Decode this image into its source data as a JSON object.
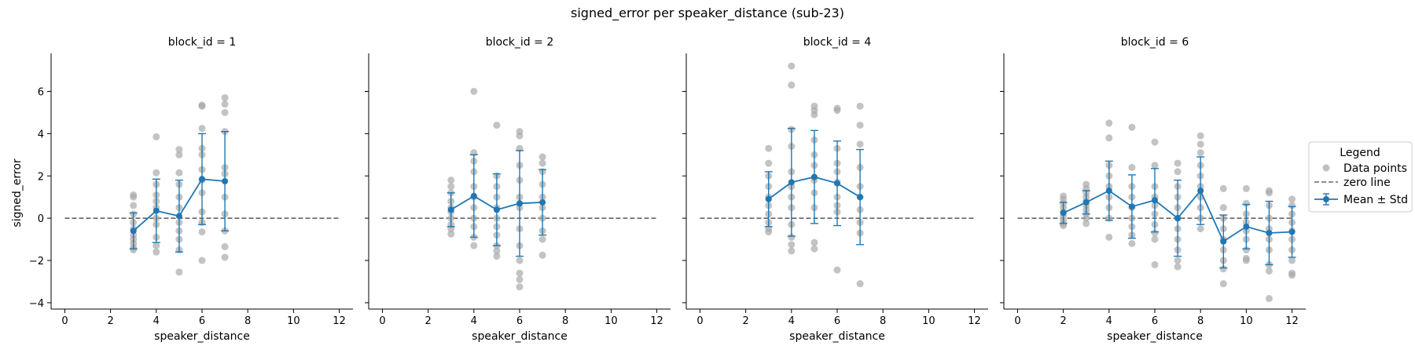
{
  "figure": {
    "suptitle": "signed_error per speaker_distance (sub-23)",
    "ylabel": "signed_error",
    "xlabel": "speaker_distance"
  },
  "legend": {
    "title": "Legend",
    "items": [
      "Data points",
      "zero line",
      "Mean ± Std"
    ]
  },
  "colors": {
    "points": "#a9a9a9",
    "mean": "#1f77b4",
    "zero": "#666666"
  },
  "chart_data": [
    {
      "type": "scatter",
      "title": "block_id = 1",
      "xlabel": "speaker_distance",
      "ylabel": "signed_error",
      "xlim": [
        -0.6,
        12.6
      ],
      "ylim": [
        -4.3,
        7.8
      ],
      "xticks": [
        0,
        2,
        4,
        6,
        8,
        10,
        12
      ],
      "yticks": [
        -4,
        -2,
        0,
        2,
        4,
        6
      ],
      "grid": false,
      "zero_line": 0,
      "mean_std": [
        {
          "x": 3,
          "mean": -0.6,
          "std": 0.85
        },
        {
          "x": 4,
          "mean": 0.35,
          "std": 1.5
        },
        {
          "x": 5,
          "mean": 0.1,
          "std": 1.7
        },
        {
          "x": 6,
          "mean": 1.85,
          "std": 2.15
        },
        {
          "x": 7,
          "mean": 1.75,
          "std": 2.35
        }
      ],
      "points": [
        {
          "x": 3,
          "y": [
            1.1,
            1.0,
            0.6,
            0.2,
            -0.2,
            -0.5,
            -0.8,
            -1.0,
            -1.2,
            -1.4,
            -1.5
          ]
        },
        {
          "x": 4,
          "y": [
            3.85,
            2.15,
            1.6,
            1.1,
            0.8,
            0.5,
            0.0,
            -0.3,
            -0.9,
            -1.3,
            -1.6
          ]
        },
        {
          "x": 5,
          "y": [
            3.25,
            3.0,
            2.15,
            1.6,
            1.0,
            0.5,
            -0.2,
            -0.6,
            -1.0,
            -1.5,
            -2.55
          ]
        },
        {
          "x": 6,
          "y": [
            5.35,
            5.3,
            4.25,
            3.3,
            3.0,
            2.3,
            1.8,
            1.2,
            0.3,
            -0.2,
            -0.65,
            -2.0
          ]
        },
        {
          "x": 7,
          "y": [
            5.7,
            5.4,
            5.0,
            4.1,
            2.4,
            2.1,
            1.0,
            0.2,
            -0.6,
            -1.35,
            -1.85
          ]
        }
      ]
    },
    {
      "type": "scatter",
      "title": "block_id = 2",
      "xlabel": "speaker_distance",
      "xlim": [
        -0.6,
        12.6
      ],
      "ylim": [
        -4.3,
        7.8
      ],
      "xticks": [
        0,
        2,
        4,
        6,
        8,
        10,
        12
      ],
      "grid": false,
      "zero_line": 0,
      "mean_std": [
        {
          "x": 3,
          "mean": 0.4,
          "std": 0.8
        },
        {
          "x": 4,
          "mean": 1.05,
          "std": 1.95
        },
        {
          "x": 5,
          "mean": 0.4,
          "std": 1.7
        },
        {
          "x": 6,
          "mean": 0.7,
          "std": 2.5
        },
        {
          "x": 7,
          "mean": 0.75,
          "std": 1.55
        }
      ],
      "points": [
        {
          "x": 3,
          "y": [
            1.8,
            1.5,
            1.2,
            0.8,
            0.5,
            0.3,
            0.0,
            -0.3,
            -0.5,
            -0.75
          ]
        },
        {
          "x": 4,
          "y": [
            6.0,
            3.1,
            2.7,
            2.2,
            1.5,
            1.0,
            0.5,
            0.0,
            -0.4,
            -0.9,
            -1.3
          ]
        },
        {
          "x": 5,
          "y": [
            4.4,
            2.0,
            1.5,
            1.0,
            0.5,
            0.0,
            -0.4,
            -0.8,
            -1.3,
            -1.55,
            -1.8
          ]
        },
        {
          "x": 6,
          "y": [
            4.1,
            3.9,
            3.3,
            2.5,
            1.8,
            1.0,
            0.5,
            -0.5,
            -1.3,
            -2.0,
            -2.6,
            -2.9,
            -3.25
          ]
        },
        {
          "x": 7,
          "y": [
            2.9,
            2.6,
            2.2,
            1.6,
            1.0,
            0.5,
            0.0,
            -0.6,
            -1.0,
            -1.75
          ]
        }
      ]
    },
    {
      "type": "scatter",
      "title": "block_id = 4",
      "xlabel": "speaker_distance",
      "xlim": [
        -0.6,
        12.6
      ],
      "ylim": [
        -4.3,
        7.8
      ],
      "xticks": [
        0,
        2,
        4,
        6,
        8,
        10,
        12
      ],
      "grid": false,
      "zero_line": 0,
      "mean_std": [
        {
          "x": 3,
          "mean": 0.9,
          "std": 1.3
        },
        {
          "x": 4,
          "mean": 1.7,
          "std": 2.55
        },
        {
          "x": 5,
          "mean": 1.95,
          "std": 2.2
        },
        {
          "x": 6,
          "mean": 1.65,
          "std": 2.0
        },
        {
          "x": 7,
          "mean": 1.0,
          "std": 2.25
        }
      ],
      "points": [
        {
          "x": 3,
          "y": [
            3.3,
            2.6,
            2.0,
            1.5,
            1.0,
            0.6,
            0.2,
            -0.2,
            -0.5,
            -0.65
          ]
        },
        {
          "x": 4,
          "y": [
            7.2,
            6.3,
            4.2,
            3.4,
            2.2,
            1.5,
            1.0,
            0.5,
            -0.3,
            -0.9,
            -1.25,
            -1.55
          ]
        },
        {
          "x": 5,
          "y": [
            5.3,
            5.1,
            4.9,
            3.7,
            3.0,
            2.5,
            1.8,
            1.2,
            0.5,
            -1.15,
            -1.45
          ]
        },
        {
          "x": 6,
          "y": [
            5.2,
            5.1,
            3.3,
            2.6,
            2.2,
            1.7,
            1.0,
            0.6,
            0.3,
            -2.45
          ]
        },
        {
          "x": 7,
          "y": [
            5.3,
            4.4,
            3.5,
            2.4,
            1.5,
            1.0,
            0.4,
            -0.2,
            -0.7,
            -3.1
          ]
        }
      ]
    },
    {
      "type": "scatter",
      "title": "block_id = 6",
      "xlabel": "speaker_distance",
      "xlim": [
        -0.6,
        12.6
      ],
      "ylim": [
        -4.3,
        7.8
      ],
      "xticks": [
        0,
        2,
        4,
        6,
        8,
        10,
        12
      ],
      "grid": false,
      "zero_line": 0,
      "mean_std": [
        {
          "x": 2,
          "mean": 0.25,
          "std": 0.5
        },
        {
          "x": 3,
          "mean": 0.75,
          "std": 0.55
        },
        {
          "x": 4,
          "mean": 1.3,
          "std": 1.4
        },
        {
          "x": 5,
          "mean": 0.55,
          "std": 1.5
        },
        {
          "x": 6,
          "mean": 0.85,
          "std": 1.5
        },
        {
          "x": 7,
          "mean": 0.0,
          "std": 1.8
        },
        {
          "x": 8,
          "mean": 1.3,
          "std": 1.6
        },
        {
          "x": 9,
          "mean": -1.1,
          "std": 1.25
        },
        {
          "x": 10,
          "mean": -0.4,
          "std": 1.05
        },
        {
          "x": 11,
          "mean": -0.7,
          "std": 1.5
        },
        {
          "x": 12,
          "mean": -0.65,
          "std": 1.2
        }
      ],
      "points": [
        {
          "x": 2,
          "y": [
            1.05,
            0.9,
            0.7,
            0.5,
            0.3,
            0.1,
            -0.1,
            -0.25,
            -0.35
          ]
        },
        {
          "x": 3,
          "y": [
            1.6,
            1.4,
            1.2,
            1.0,
            0.8,
            0.6,
            0.4,
            0.2,
            0.0,
            -0.25
          ]
        },
        {
          "x": 4,
          "y": [
            4.5,
            3.8,
            2.5,
            2.0,
            1.5,
            1.0,
            0.5,
            0.0,
            -0.9
          ]
        },
        {
          "x": 5,
          "y": [
            4.3,
            2.4,
            1.5,
            1.0,
            0.5,
            0.0,
            -0.4,
            -0.8,
            -1.2
          ]
        },
        {
          "x": 6,
          "y": [
            3.6,
            2.5,
            1.5,
            1.0,
            0.6,
            0.2,
            -0.3,
            -0.7,
            -1.0,
            -2.2
          ]
        },
        {
          "x": 7,
          "y": [
            2.6,
            2.2,
            1.5,
            1.0,
            0.5,
            0.0,
            -0.5,
            -1.0,
            -1.5,
            -2.0,
            -2.3
          ]
        },
        {
          "x": 8,
          "y": [
            3.9,
            3.5,
            3.1,
            2.5,
            2.0,
            1.5,
            1.0,
            0.5,
            0.0,
            -0.5
          ]
        },
        {
          "x": 9,
          "y": [
            1.4,
            0.5,
            0.0,
            -0.5,
            -1.0,
            -1.5,
            -2.0,
            -2.4,
            -3.1
          ]
        },
        {
          "x": 10,
          "y": [
            1.4,
            0.7,
            0.2,
            -0.2,
            -0.6,
            -1.0,
            -1.5,
            -1.9,
            -2.0
          ]
        },
        {
          "x": 11,
          "y": [
            1.3,
            1.2,
            0.6,
            0.0,
            -0.5,
            -1.0,
            -1.5,
            -2.2,
            -2.5,
            -3.8
          ]
        },
        {
          "x": 12,
          "y": [
            0.9,
            0.6,
            0.2,
            -0.2,
            -0.6,
            -1.0,
            -1.5,
            -2.0,
            -2.6,
            -2.7
          ]
        }
      ]
    }
  ]
}
